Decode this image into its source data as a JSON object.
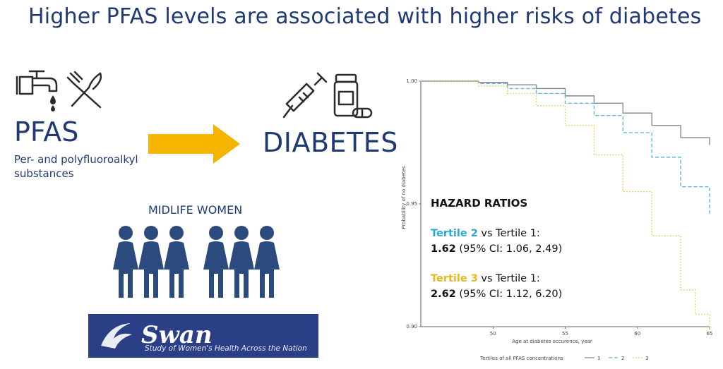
{
  "slide": {
    "title": "Higher PFAS levels are associated with higher risks of diabetes"
  },
  "pfas": {
    "heading": "PFAS",
    "subtitle": "Per- and polyfluoroalkyl substances",
    "icons": [
      "faucet-icon",
      "fork-knife-icon"
    ]
  },
  "arrow": {
    "color": "#f4b400"
  },
  "diabetes": {
    "heading": "DIABETES",
    "icons": [
      "syringe-icon",
      "pill-bottle-icon"
    ]
  },
  "women": {
    "label": "MIDLIFE WOMEN",
    "count": 6
  },
  "swan": {
    "name": "Swan",
    "tagline": "Study of Women's Health Across the Nation"
  },
  "hazard": {
    "heading": "HAZARD RATIOS",
    "t2_label": "Tertile 2",
    "t2_vs": " vs Tertile 1:",
    "t2_value": "1.62",
    "t2_ci": " (95% CI: 1.06, 2.49)",
    "t3_label": "Tertile 3",
    "t3_vs": " vs Tertile 1:",
    "t3_value": "2.62",
    "t3_ci": " (95% CI: 1.12, 6.20)"
  },
  "chart_data": {
    "type": "line",
    "xlabel": "Age at diabetes occurence, year",
    "ylabel": "Probability of no diabetes",
    "xlim": [
      45,
      65
    ],
    "ylim": [
      0.9,
      1.0
    ],
    "xticks": [
      "50",
      "55",
      "60",
      "65"
    ],
    "yticks": [
      "1.00",
      "0.95",
      "0.90"
    ],
    "legend_title": "Tertiles of all PFAS concentrations",
    "legend_position": "bottom",
    "series": [
      {
        "name": "1",
        "color": "#888888",
        "dash": "solid",
        "x": [
          45,
          47,
          49,
          51,
          53,
          55,
          57,
          59,
          61,
          63,
          65
        ],
        "y": [
          1.0,
          1.0,
          0.9995,
          0.9985,
          0.997,
          0.994,
          0.991,
          0.987,
          0.982,
          0.977,
          0.974
        ]
      },
      {
        "name": "2",
        "color": "#5bb8e0",
        "dash": "dashed",
        "x": [
          45,
          47,
          49,
          51,
          53,
          55,
          57,
          59,
          61,
          63,
          65
        ],
        "y": [
          1.0,
          1.0,
          0.999,
          0.997,
          0.995,
          0.991,
          0.986,
          0.979,
          0.969,
          0.957,
          0.946
        ]
      },
      {
        "name": "3",
        "color": "#e8c440",
        "dash": "dotted",
        "x": [
          45,
          47,
          49,
          51,
          53,
          55,
          57,
          59,
          61,
          63,
          64,
          65
        ],
        "y": [
          1.0,
          1.0,
          0.998,
          0.995,
          0.99,
          0.982,
          0.97,
          0.955,
          0.937,
          0.915,
          0.905,
          0.897
        ]
      }
    ]
  }
}
